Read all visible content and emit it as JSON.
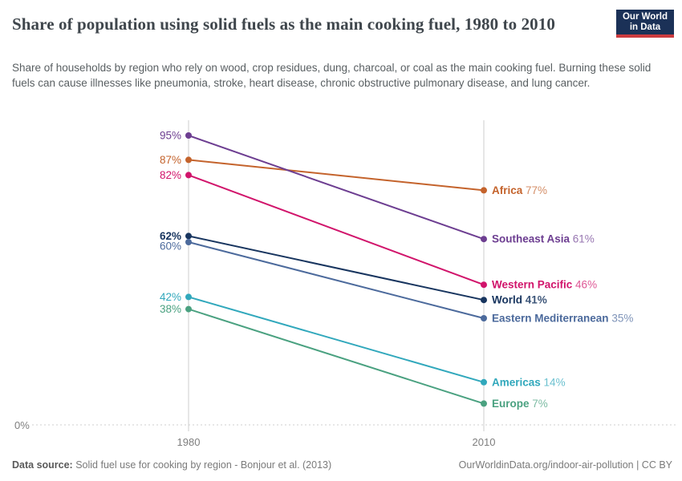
{
  "header": {
    "logo": {
      "line1": "Our World",
      "line2": "in Data"
    }
  },
  "chart_data": {
    "type": "line",
    "subtype": "slope",
    "title": "Share of population using solid fuels as the main cooking fuel, 1980 to 2010",
    "subtitle": "Share of households by region who rely on wood, crop residues, dung, charcoal, or coal as the main cooking fuel. Burning these solid fuels can cause illnesses like pneumonia, stroke, heart disease, chronic obstructive pulmonary disease, and lung cancer.",
    "x": [
      1980,
      2010
    ],
    "x_tick_labels": [
      "1980",
      "2010"
    ],
    "baseline_label": "0%",
    "unit": "%",
    "ylim": [
      0,
      100
    ],
    "grid": "baseline-dashed-only",
    "legend_position": "right-inline",
    "series": [
      {
        "name": "Africa",
        "color": "#C4632C",
        "values": [
          87,
          77
        ]
      },
      {
        "name": "Southeast Asia",
        "color": "#6D3E91",
        "values": [
          95,
          61
        ]
      },
      {
        "name": "Western Pacific",
        "color": "#D1146B",
        "values": [
          82,
          46
        ]
      },
      {
        "name": "World",
        "color": "#18355F",
        "values": [
          62,
          41
        ],
        "emphasis": true
      },
      {
        "name": "Eastern Mediterranean",
        "color": "#4C6A9C",
        "values": [
          60,
          35
        ],
        "left_dy": 5
      },
      {
        "name": "Americas",
        "color": "#31A8BC",
        "values": [
          42,
          14
        ]
      },
      {
        "name": "Europe",
        "color": "#4AA180",
        "values": [
          38,
          7
        ]
      }
    ]
  },
  "footer": {
    "datasource_label": "Data source:",
    "datasource_text": "Solid fuel use for cooking by region - Bonjour et al. (2013)",
    "credit": "OurWorldinData.org/indoor-air-pollution | CC BY"
  }
}
